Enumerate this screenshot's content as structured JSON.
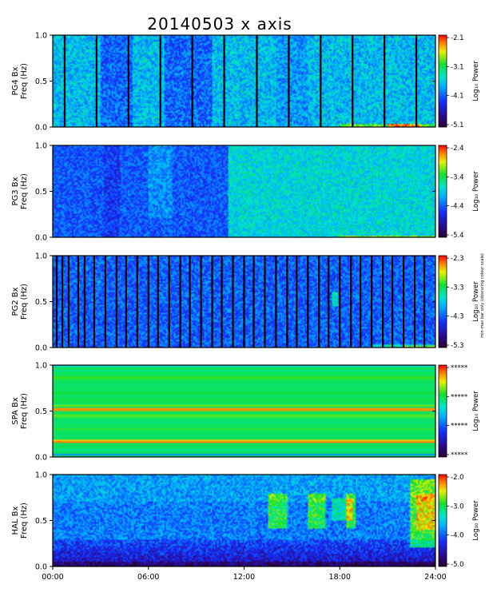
{
  "figure": {
    "title": "20140503 x axis",
    "freq_label": "Freq (Hz)",
    "colorbar_label": "Log₁₀ Power",
    "side_note": "min-max bar only (obscuring colour scale)",
    "x_ticks": [
      "00:00",
      "06:00",
      "12:00",
      "18:00",
      "24:00"
    ]
  },
  "chart_data": [
    {
      "type": "heatmap",
      "station": "PG4 Bx",
      "xlim": [
        0,
        24
      ],
      "ylim": [
        0.0,
        1.0
      ],
      "y_ticks": [
        "0.0",
        "0.5",
        "1.0"
      ],
      "colorbar_ticks": [
        "-2.1",
        "-3.1",
        "-4.1",
        "-5.1"
      ],
      "colorbar_range": [
        -5.1,
        -2.1
      ],
      "data_gaps_hours": [
        0.75,
        2.75,
        4.75,
        6.75,
        8.75,
        10.75,
        12.8,
        14.8,
        16.8,
        18.8,
        20.8,
        22.8
      ],
      "notes": "broadband ~ -4.1 background; darker bands 3-5h and 7-10h; slight enhancement near 0 Hz after 18h"
    },
    {
      "type": "heatmap",
      "station": "PG3 Bx",
      "xlim": [
        0,
        24
      ],
      "ylim": [
        0.0,
        1.0
      ],
      "y_ticks": [
        "0.0",
        "0.5",
        "1.0"
      ],
      "colorbar_ticks": [
        "-2.4",
        "-3.4",
        "-4.4",
        "-5.4"
      ],
      "colorbar_range": [
        -5.4,
        -2.4
      ],
      "data_gaps_hours": [],
      "notes": "power increases after ~11h to ~ -3.6 (green); enhanced near 0 Hz 18-23h"
    },
    {
      "type": "heatmap",
      "station": "PG2 Bx",
      "xlim": [
        0,
        24
      ],
      "ylim": [
        0.0,
        1.0
      ],
      "y_ticks": [
        "0.0",
        "0.5",
        "1.0"
      ],
      "colorbar_ticks": [
        "-2.3",
        "-3.3",
        "-4.3",
        "-5.3"
      ],
      "colorbar_range": [
        -5.3,
        -2.3
      ],
      "data_gaps_hours": [
        0.25,
        0.6,
        1.0,
        1.6,
        2.0,
        2.6,
        3.3,
        4.0,
        4.6,
        5.3,
        6.0,
        6.6,
        7.3,
        8.0,
        8.6,
        9.3,
        10.0,
        10.6,
        11.3,
        12.0,
        12.6,
        13.3,
        14.0,
        14.7,
        15.3,
        16.0,
        16.7,
        17.3,
        18.0,
        18.7,
        19.3,
        20.0,
        20.7,
        21.3,
        22.0,
        22.7,
        23.3
      ],
      "notes": "broadband ~ -4.3; green emission near 0.5 Hz at ~17.7h; enhancement near 0 Hz after 20h"
    },
    {
      "type": "heatmap",
      "station": "SPA Bx",
      "xlim": [
        0,
        24
      ],
      "ylim": [
        0.0,
        1.0
      ],
      "y_ticks": [
        "0.0",
        "0.5",
        "1.0"
      ],
      "colorbar_ticks": [
        "*****",
        "*****",
        "*****",
        "*****"
      ],
      "colorbar_range": null,
      "data_gaps_hours": [],
      "notes": "time-invariant horizontal bands; strong (red/yellow) bands near 0.15-0.18 Hz and ~0.52 Hz"
    },
    {
      "type": "heatmap",
      "station": "HAL Bx",
      "xlim": [
        0,
        24
      ],
      "ylim": [
        0.0,
        1.0
      ],
      "y_ticks": [
        "0.0",
        "0.5",
        "1.0"
      ],
      "colorbar_ticks": [
        "-2.0",
        "-3.0",
        "-4.0",
        "-5.0"
      ],
      "colorbar_range": [
        -5.0,
        -2.0
      ],
      "data_gaps_hours": [],
      "notes": "low power (dark) below 0.3 Hz; emission bursts 0.45-0.8 Hz between ~13.5h and ~19h; strong activity 0.2-0.9 Hz after ~22.5h"
    }
  ]
}
